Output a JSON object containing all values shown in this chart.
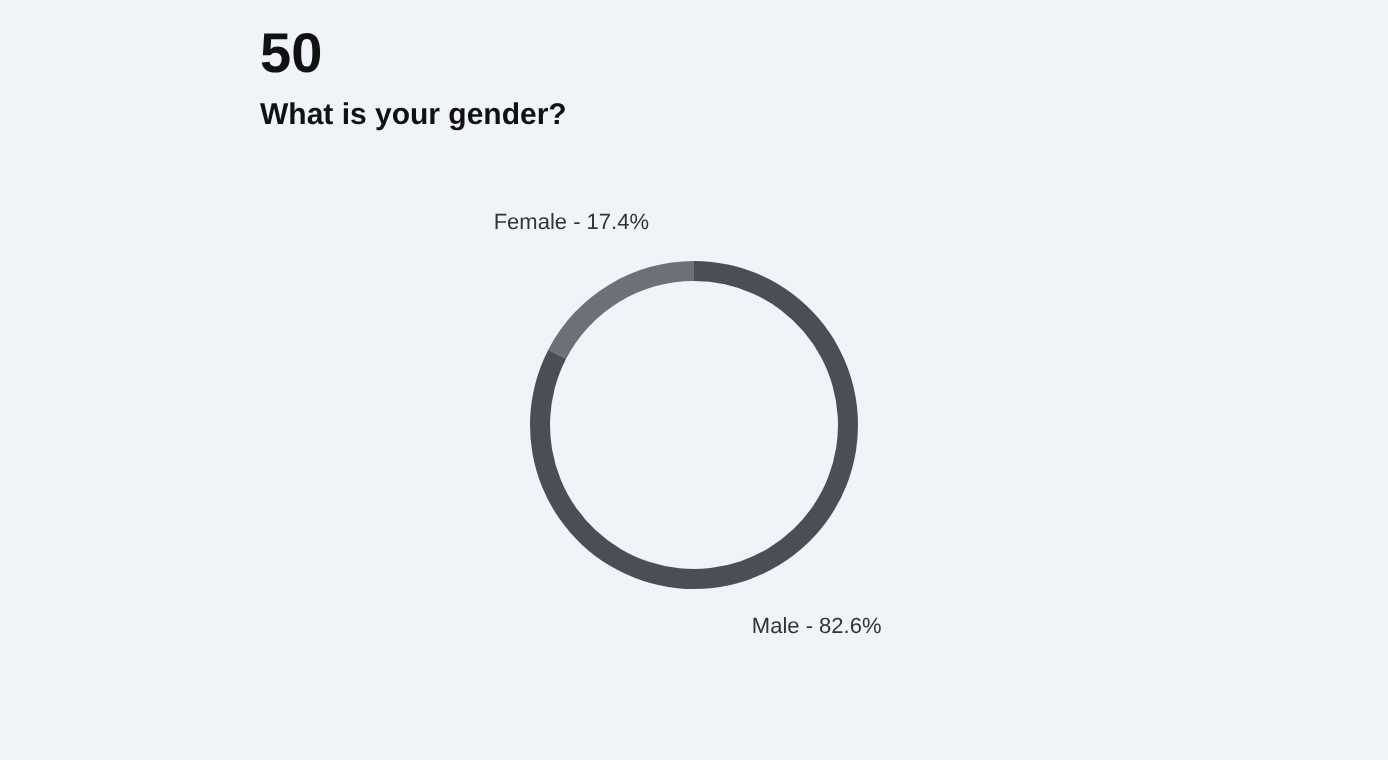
{
  "chart_data": {
    "type": "donut",
    "title": "50",
    "subtitle": "What is your gender?",
    "categories": [
      "Female",
      "Male"
    ],
    "values": [
      17.4,
      82.6
    ],
    "colors": [
      "#6b7079",
      "#4a4f57"
    ],
    "value_labels": [
      "17.4%",
      "82.6%"
    ],
    "legend": false
  }
}
